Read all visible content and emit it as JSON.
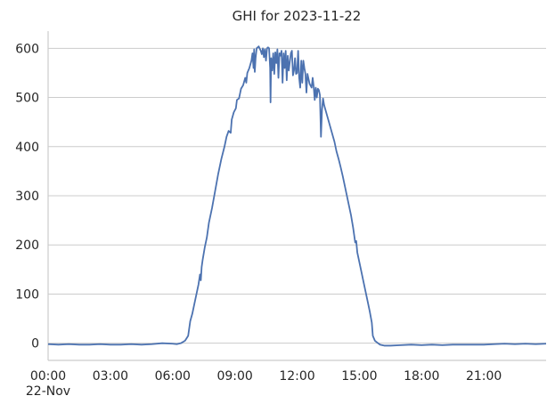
{
  "chart_data": {
    "type": "line",
    "title": "GHI for 2023-11-22",
    "xlabel": "",
    "ylabel": "",
    "x_unit": "hours (time of day, 2023-11-22)",
    "xlim": [
      0,
      24
    ],
    "ylim": [
      -35,
      635
    ],
    "grid": "horizontal",
    "x_ticks": [
      {
        "value": 0,
        "label": "00:00",
        "sublabel": "22-Nov"
      },
      {
        "value": 3,
        "label": "03:00"
      },
      {
        "value": 6,
        "label": "06:00"
      },
      {
        "value": 9,
        "label": "09:00"
      },
      {
        "value": 12,
        "label": "12:00"
      },
      {
        "value": 15,
        "label": "15:00"
      },
      {
        "value": 18,
        "label": "18:00"
      },
      {
        "value": 21,
        "label": "21:00"
      }
    ],
    "y_ticks": [
      {
        "value": 0,
        "label": "0"
      },
      {
        "value": 100,
        "label": "100"
      },
      {
        "value": 200,
        "label": "200"
      },
      {
        "value": 300,
        "label": "300"
      },
      {
        "value": 400,
        "label": "400"
      },
      {
        "value": 500,
        "label": "500"
      },
      {
        "value": 600,
        "label": "600"
      }
    ],
    "series": [
      {
        "color": "#4c72b0",
        "points": [
          [
            0.0,
            -2
          ],
          [
            0.5,
            -3
          ],
          [
            1.0,
            -2
          ],
          [
            1.5,
            -3
          ],
          [
            2.0,
            -3
          ],
          [
            2.5,
            -2
          ],
          [
            3.0,
            -3
          ],
          [
            3.5,
            -3
          ],
          [
            4.0,
            -2
          ],
          [
            4.5,
            -3
          ],
          [
            5.0,
            -2
          ],
          [
            5.5,
            0
          ],
          [
            6.0,
            -1
          ],
          [
            6.2,
            -2
          ],
          [
            6.4,
            0
          ],
          [
            6.6,
            5
          ],
          [
            6.75,
            15
          ],
          [
            6.85,
            45
          ],
          [
            6.95,
            60
          ],
          [
            7.05,
            80
          ],
          [
            7.15,
            100
          ],
          [
            7.25,
            120
          ],
          [
            7.32,
            140
          ],
          [
            7.36,
            128
          ],
          [
            7.4,
            155
          ],
          [
            7.45,
            170
          ],
          [
            7.55,
            195
          ],
          [
            7.65,
            215
          ],
          [
            7.75,
            245
          ],
          [
            7.9,
            275
          ],
          [
            8.05,
            310
          ],
          [
            8.2,
            345
          ],
          [
            8.35,
            375
          ],
          [
            8.5,
            400
          ],
          [
            8.6,
            420
          ],
          [
            8.7,
            432
          ],
          [
            8.8,
            428
          ],
          [
            8.85,
            455
          ],
          [
            8.95,
            470
          ],
          [
            9.05,
            478
          ],
          [
            9.1,
            495
          ],
          [
            9.2,
            498
          ],
          [
            9.3,
            518
          ],
          [
            9.4,
            525
          ],
          [
            9.5,
            540
          ],
          [
            9.55,
            530
          ],
          [
            9.6,
            550
          ],
          [
            9.7,
            560
          ],
          [
            9.8,
            575
          ],
          [
            9.85,
            590
          ],
          [
            9.9,
            560
          ],
          [
            9.93,
            598
          ],
          [
            9.96,
            552
          ],
          [
            10.0,
            580
          ],
          [
            10.05,
            600
          ],
          [
            10.15,
            604
          ],
          [
            10.25,
            595
          ],
          [
            10.3,
            588
          ],
          [
            10.35,
            600
          ],
          [
            10.4,
            582
          ],
          [
            10.45,
            598
          ],
          [
            10.5,
            575
          ],
          [
            10.55,
            600
          ],
          [
            10.6,
            602
          ],
          [
            10.65,
            600
          ],
          [
            10.7,
            560
          ],
          [
            10.72,
            490
          ],
          [
            10.75,
            580
          ],
          [
            10.8,
            555
          ],
          [
            10.85,
            590
          ],
          [
            10.9,
            548
          ],
          [
            10.95,
            592
          ],
          [
            11.0,
            570
          ],
          [
            11.05,
            598
          ],
          [
            11.1,
            540
          ],
          [
            11.15,
            590
          ],
          [
            11.2,
            585
          ],
          [
            11.25,
            595
          ],
          [
            11.3,
            530
          ],
          [
            11.35,
            590
          ],
          [
            11.4,
            560
          ],
          [
            11.45,
            595
          ],
          [
            11.5,
            535
          ],
          [
            11.55,
            585
          ],
          [
            11.6,
            555
          ],
          [
            11.7,
            590
          ],
          [
            11.75,
            595
          ],
          [
            11.8,
            545
          ],
          [
            11.85,
            555
          ],
          [
            11.9,
            580
          ],
          [
            11.95,
            548
          ],
          [
            12.0,
            550
          ],
          [
            12.05,
            595
          ],
          [
            12.1,
            540
          ],
          [
            12.15,
            520
          ],
          [
            12.2,
            575
          ],
          [
            12.25,
            530
          ],
          [
            12.3,
            575
          ],
          [
            12.35,
            560
          ],
          [
            12.4,
            548
          ],
          [
            12.45,
            510
          ],
          [
            12.5,
            548
          ],
          [
            12.55,
            538
          ],
          [
            12.6,
            528
          ],
          [
            12.7,
            520
          ],
          [
            12.75,
            540
          ],
          [
            12.8,
            522
          ],
          [
            12.85,
            495
          ],
          [
            12.9,
            520
          ],
          [
            12.95,
            500
          ],
          [
            13.0,
            518
          ],
          [
            13.05,
            515
          ],
          [
            13.1,
            505
          ],
          [
            13.15,
            420
          ],
          [
            13.2,
            475
          ],
          [
            13.25,
            498
          ],
          [
            13.3,
            485
          ],
          [
            13.4,
            470
          ],
          [
            13.5,
            455
          ],
          [
            13.6,
            440
          ],
          [
            13.7,
            425
          ],
          [
            13.8,
            410
          ],
          [
            13.9,
            390
          ],
          [
            14.0,
            375
          ],
          [
            14.1,
            358
          ],
          [
            14.2,
            340
          ],
          [
            14.3,
            320
          ],
          [
            14.4,
            300
          ],
          [
            14.5,
            280
          ],
          [
            14.6,
            260
          ],
          [
            14.7,
            235
          ],
          [
            14.8,
            205
          ],
          [
            14.85,
            208
          ],
          [
            14.9,
            185
          ],
          [
            15.0,
            165
          ],
          [
            15.1,
            145
          ],
          [
            15.2,
            125
          ],
          [
            15.3,
            105
          ],
          [
            15.4,
            85
          ],
          [
            15.5,
            65
          ],
          [
            15.6,
            42
          ],
          [
            15.65,
            15
          ],
          [
            15.75,
            5
          ],
          [
            15.9,
            0
          ],
          [
            16.0,
            -3
          ],
          [
            16.2,
            -5
          ],
          [
            16.5,
            -5
          ],
          [
            17.0,
            -4
          ],
          [
            17.5,
            -3
          ],
          [
            18.0,
            -4
          ],
          [
            18.5,
            -3
          ],
          [
            19.0,
            -4
          ],
          [
            19.5,
            -3
          ],
          [
            20.0,
            -3
          ],
          [
            20.5,
            -3
          ],
          [
            21.0,
            -3
          ],
          [
            21.5,
            -2
          ],
          [
            22.0,
            -1
          ],
          [
            22.5,
            -2
          ],
          [
            23.0,
            -1
          ],
          [
            23.5,
            -2
          ],
          [
            24.0,
            -1
          ]
        ]
      }
    ]
  }
}
